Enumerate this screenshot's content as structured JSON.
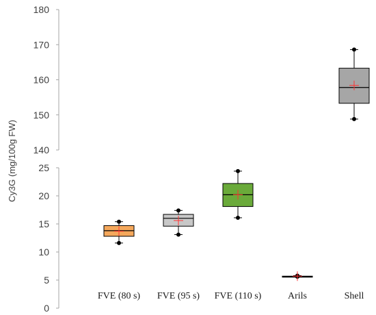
{
  "chart_data": {
    "type": "box",
    "ylabel": "Cy3G (mg/100g FW)",
    "title": "",
    "xlabel": "",
    "axis_break": true,
    "lower_segment": {
      "ylim": [
        0,
        25
      ],
      "ticks": [
        0,
        5,
        10,
        15,
        20,
        25
      ]
    },
    "upper_segment": {
      "ylim": [
        140,
        180
      ],
      "ticks": [
        140,
        150,
        160,
        170,
        180
      ]
    },
    "grid": false,
    "categories": [
      "FVE (80 s)",
      "FVE (95 s)",
      "FVE (110 s)",
      "Arils",
      "Shell"
    ],
    "boxes": [
      {
        "category": "FVE (80 s)",
        "min": 11.6,
        "q1": 12.8,
        "median": 13.8,
        "q3": 14.7,
        "max": 15.4,
        "mean": 13.7,
        "color": "#f5a85c"
      },
      {
        "category": "FVE (95 s)",
        "min": 13.1,
        "q1": 14.6,
        "median": 16.0,
        "q3": 16.7,
        "max": 17.4,
        "mean": 15.6,
        "color": "#c8c8c8"
      },
      {
        "category": "FVE (110 s)",
        "min": 16.1,
        "q1": 18.1,
        "median": 20.2,
        "q3": 22.2,
        "max": 24.4,
        "mean": 20.2,
        "color": "#6aaa3a"
      },
      {
        "category": "Arils",
        "min": 5.6,
        "q1": 5.6,
        "median": 5.6,
        "q3": 5.7,
        "max": 5.8,
        "mean": 5.7,
        "color": "#a6a6a6"
      },
      {
        "category": "Shell",
        "min": 148.8,
        "q1": 153.3,
        "median": 157.8,
        "q3": 163.3,
        "max": 168.6,
        "mean": 158.4,
        "color": "#a6a6a6"
      }
    ],
    "mean_marker_color": "#ff3333"
  }
}
